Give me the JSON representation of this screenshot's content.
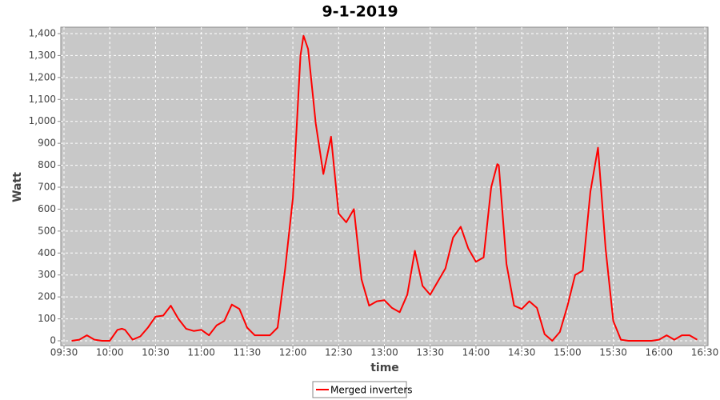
{
  "chart_data": {
    "type": "line",
    "title": "9-1-2019",
    "x_label": "time",
    "y_label": "Watt",
    "x": [
      "09:35",
      "09:40",
      "09:45",
      "09:50",
      "09:55",
      "10:00",
      "10:05",
      "10:08",
      "10:10",
      "10:15",
      "10:20",
      "10:25",
      "10:30",
      "10:35",
      "10:40",
      "10:45",
      "10:50",
      "10:55",
      "11:00",
      "11:05",
      "11:10",
      "11:15",
      "11:20",
      "11:25",
      "11:30",
      "11:35",
      "11:40",
      "11:45",
      "11:50",
      "11:55",
      "12:00",
      "12:05",
      "12:07",
      "12:10",
      "12:15",
      "12:20",
      "12:25",
      "12:30",
      "12:35",
      "12:40",
      "12:45",
      "12:50",
      "12:55",
      "13:00",
      "13:05",
      "13:10",
      "13:15",
      "13:20",
      "13:25",
      "13:30",
      "13:35",
      "13:40",
      "13:45",
      "13:50",
      "13:55",
      "14:00",
      "14:05",
      "14:10",
      "14:14",
      "14:15",
      "14:20",
      "14:25",
      "14:30",
      "14:35",
      "14:40",
      "14:45",
      "14:50",
      "14:55",
      "15:00",
      "15:05",
      "15:10",
      "15:15",
      "15:20",
      "15:25",
      "15:30",
      "15:35",
      "15:40",
      "15:45",
      "15:50",
      "15:55",
      "16:00",
      "16:05",
      "16:10",
      "16:15",
      "16:20",
      "16:25"
    ],
    "series": [
      {
        "name": "Merged inverters",
        "color": "#ff0000",
        "values": [
          0,
          5,
          25,
          5,
          0,
          0,
          50,
          55,
          50,
          5,
          20,
          60,
          110,
          115,
          160,
          100,
          55,
          45,
          50,
          25,
          70,
          90,
          165,
          145,
          60,
          25,
          25,
          25,
          60,
          330,
          650,
          1300,
          1390,
          1330,
          990,
          760,
          930,
          580,
          540,
          600,
          280,
          160,
          180,
          185,
          150,
          130,
          210,
          410,
          250,
          210,
          270,
          330,
          470,
          520,
          420,
          360,
          380,
          700,
          805,
          800,
          350,
          160,
          145,
          180,
          150,
          30,
          0,
          40,
          160,
          300,
          320,
          680,
          880,
          420,
          90,
          5,
          0,
          0,
          0,
          0,
          5,
          25,
          5,
          25,
          25,
          5
        ]
      }
    ],
    "xlim": [
      "09:30",
      "16:30"
    ],
    "xticks": [
      "09:30",
      "10:00",
      "10:30",
      "11:00",
      "11:30",
      "12:00",
      "12:30",
      "13:00",
      "13:30",
      "14:00",
      "14:30",
      "15:00",
      "15:30",
      "16:00",
      "16:30"
    ],
    "ylim": [
      0,
      1400
    ],
    "yticks": [
      0,
      100,
      200,
      300,
      400,
      500,
      600,
      700,
      800,
      900,
      {
        "value": 1000,
        "label": "1,000"
      },
      {
        "value": 1100,
        "label": "1,100"
      },
      {
        "value": 1200,
        "label": "1,200"
      },
      {
        "value": 1300,
        "label": "1,300"
      },
      {
        "value": 1400,
        "label": "1,400"
      }
    ],
    "grid": true,
    "legend": "bottom"
  }
}
